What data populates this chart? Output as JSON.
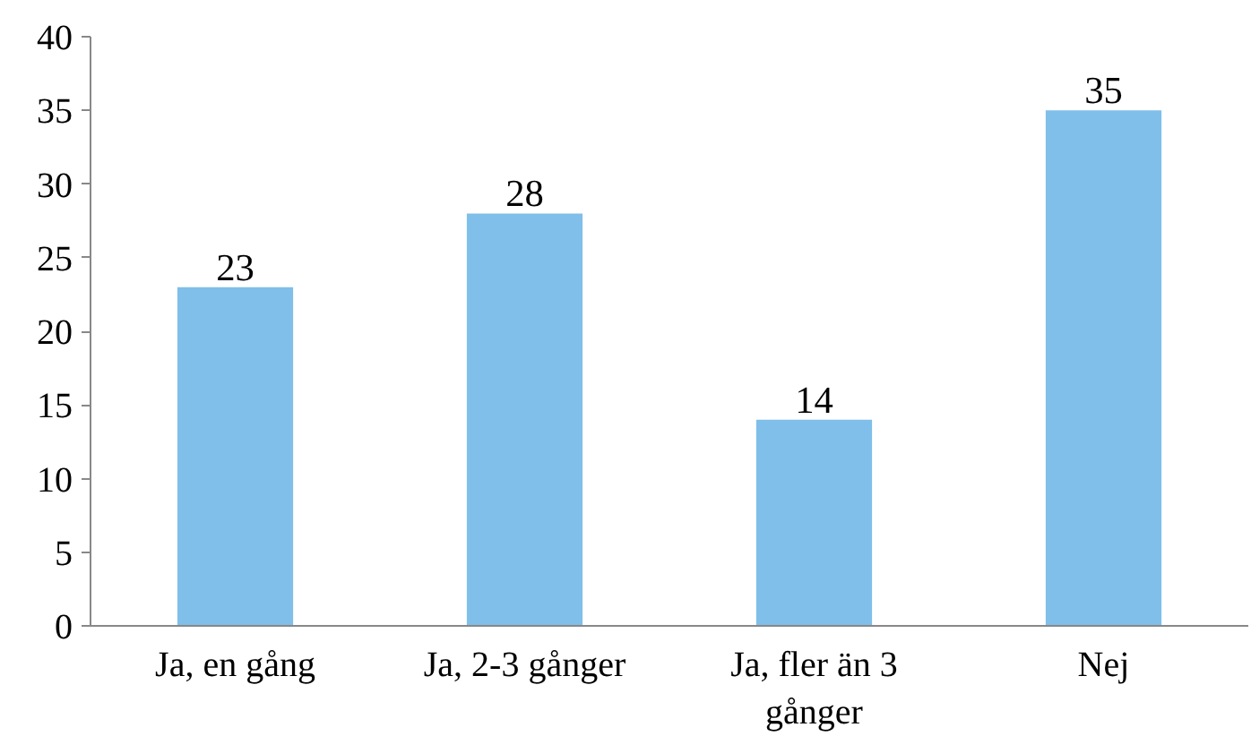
{
  "chart_data": {
    "type": "bar",
    "categories": [
      "Ja, en gång",
      "Ja, 2-3 gånger",
      "Ja, fler än 3 gånger",
      "Nej"
    ],
    "values": [
      23,
      28,
      14,
      35
    ],
    "color": "#7fbfea",
    "ylim": [
      0,
      40
    ],
    "yticks": [
      0,
      5,
      10,
      15,
      20,
      25,
      30,
      35,
      40
    ],
    "grid": false,
    "data_labels": true
  }
}
